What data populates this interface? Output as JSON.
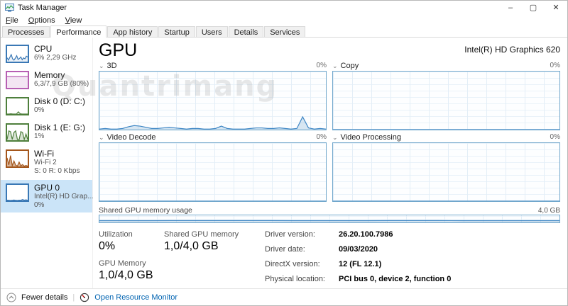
{
  "window": {
    "title": "Task Manager",
    "minimize": "–",
    "maximize": "▢",
    "close": "✕"
  },
  "menu": {
    "items": [
      {
        "label": "File"
      },
      {
        "label": "Options"
      },
      {
        "label": "View"
      }
    ]
  },
  "tabs": {
    "items": [
      {
        "label": "Processes",
        "active": false
      },
      {
        "label": "Performance",
        "active": true
      },
      {
        "label": "App history",
        "active": false
      },
      {
        "label": "Startup",
        "active": false
      },
      {
        "label": "Users",
        "active": false
      },
      {
        "label": "Details",
        "active": false
      },
      {
        "label": "Services",
        "active": false
      }
    ]
  },
  "sidebar": {
    "items": [
      {
        "title": "CPU",
        "sub1": "6% 2,29 GHz",
        "sub2": "",
        "spark": [
          25,
          10,
          28,
          45,
          18,
          10,
          22,
          38,
          14,
          20,
          30,
          12,
          24,
          18,
          35,
          30
        ]
      },
      {
        "title": "Memory",
        "sub1": "6,3/7,9 GB (80%)",
        "sub2": "",
        "spark": [
          72,
          72,
          72,
          72
        ]
      },
      {
        "title": "Disk 0 (D: C:)",
        "sub1": "0%",
        "sub2": "",
        "spark": [
          0,
          0,
          2,
          0,
          0,
          0,
          14,
          2,
          0,
          0,
          0,
          0
        ]
      },
      {
        "title": "Disk 1 (E: G:)",
        "sub1": "1%",
        "sub2": "",
        "spark": [
          5,
          60,
          55,
          5,
          50,
          60,
          5,
          3,
          55,
          50,
          5,
          40,
          5
        ]
      },
      {
        "title": "Wi-Fi",
        "sub1": "Wi-Fi 2",
        "sub2": "S: 0 R: 0 Kbps",
        "spark": [
          55,
          10,
          70,
          5,
          35,
          8,
          3,
          28,
          4,
          12,
          2,
          6,
          2
        ]
      },
      {
        "title": "GPU 0",
        "sub1": "Intel(R) HD Grap...",
        "sub2": "0%",
        "spark": [
          2,
          1,
          0,
          1,
          3,
          1,
          0,
          2,
          1,
          6,
          2,
          4,
          1
        ]
      }
    ]
  },
  "main": {
    "heading": "GPU",
    "device": "Intel(R) HD Graphics 620",
    "charts": [
      {
        "label": "3D",
        "value": "0%"
      },
      {
        "label": "Copy",
        "value": "0%"
      },
      {
        "label": "Video Decode",
        "value": "0%"
      },
      {
        "label": "Video Processing",
        "value": "0%"
      }
    ],
    "shared": {
      "label": "Shared GPU memory usage",
      "max": "4,0 GB"
    },
    "stats": {
      "utilization": {
        "label": "Utilization",
        "value": "0%"
      },
      "gpu_memory": {
        "label": "GPU Memory",
        "value": "1,0/4,0 GB"
      },
      "shared_gpu_memory": {
        "label": "Shared GPU memory",
        "value": "1,0/4,0 GB"
      }
    },
    "driver": [
      {
        "label": "Driver version:",
        "value": "26.20.100.7986"
      },
      {
        "label": "Driver date:",
        "value": "09/03/2020"
      },
      {
        "label": "DirectX version:",
        "value": "12 (FL 12.1)"
      },
      {
        "label": "Physical location:",
        "value": "PCI bus 0, device 2, function 0"
      }
    ]
  },
  "footer": {
    "fewer_details": "Fewer details",
    "open_resource_monitor": "Open Resource Monitor"
  },
  "icons": {
    "chevron_down": "⌄",
    "separator": "|"
  },
  "watermark": {
    "text": "Quantrimang"
  },
  "colors": {
    "cpu": "#3a78b5",
    "memory": "#b75fb3",
    "disk": "#4e7f3c",
    "wifi": "#a4561b",
    "gpu": "#3a78b5",
    "chart_border": "#71a7cc",
    "selected_bg": "#cbe4f8",
    "link": "#0063b1",
    "gpu_line": "#3f87c5",
    "gpu_area": "rgba(120,170,210,0.28)",
    "cpu_fill": "rgba(58,120,181,0.10)",
    "memory_fill": "rgba(183,95,179,0.16)",
    "disk_fill": "rgba(78,127,60,0.22)",
    "wifi_fill": "rgba(164,86,27,0.45)",
    "gpu_fill": "rgba(63,135,197,0.25)"
  },
  "chart_data": {
    "type": "line",
    "note": "GPU engine utilization over time, y-axis 0-100%",
    "series": [
      {
        "name": "3D",
        "values": [
          1,
          2,
          1,
          1,
          2,
          5,
          7,
          6,
          4,
          2,
          2,
          3,
          4,
          3,
          2,
          1,
          2,
          2,
          1,
          1,
          2,
          6,
          2,
          1,
          1,
          1,
          2,
          3,
          3,
          2,
          2,
          3,
          2,
          1,
          2,
          22,
          3,
          1,
          2,
          1
        ]
      },
      {
        "name": "Copy",
        "values": [
          0,
          0
        ]
      },
      {
        "name": "Video Decode",
        "values": [
          0,
          0
        ]
      },
      {
        "name": "Video Processing",
        "values": [
          0,
          0
        ]
      }
    ],
    "shared_memory": {
      "name": "Shared GPU memory usage",
      "unit": "GB",
      "max": 4.0,
      "values": [
        1.0,
        1.0,
        1.0,
        1.05,
        1.05,
        1.05,
        1.05,
        1.05,
        1.0,
        1.0,
        1.0,
        1.0,
        1.05,
        1.05,
        1.05,
        1.0,
        1.0,
        1.0,
        1.0,
        1.0
      ]
    }
  }
}
